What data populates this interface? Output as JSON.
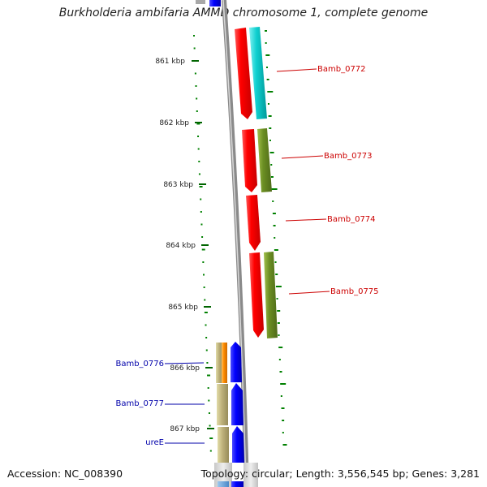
{
  "title": "Burkholderia ambifaria AMMD chromosome 1, complete genome",
  "accession": "Accession: NC_008390",
  "topology": "Topology: circular; Length: 3,556,545 bp; Genes: 3,281",
  "ruler": {
    "unit": "kbp",
    "ticks": [
      "861 kbp",
      "862 kbp",
      "863 kbp",
      "864 kbp",
      "865 kbp",
      "866 kbp",
      "867 kbp"
    ]
  },
  "genes_right": [
    {
      "label": "Bamb_0772",
      "color": "#cc0000"
    },
    {
      "label": "Bamb_0773",
      "color": "#cc0000"
    },
    {
      "label": "Bamb_0774",
      "color": "#cc0000"
    },
    {
      "label": "Bamb_0775",
      "color": "#cc0000"
    }
  ],
  "genes_left": [
    {
      "label": "Bamb_0776",
      "color": "#0000aa"
    },
    {
      "label": "Bamb_0777",
      "color": "#0000aa"
    },
    {
      "label": "ureE",
      "color": "#0000aa"
    }
  ],
  "colors": {
    "forward_strand": "#ff0000",
    "reverse_strand": "#0000ff",
    "cog_cyan": "#00cccc",
    "cog_olive": "#6b8e23",
    "cog_khaki": "#bdb76b",
    "cog_orange": "#ff8c00",
    "backbone": "#888888",
    "gc_ticks": "#008000"
  }
}
